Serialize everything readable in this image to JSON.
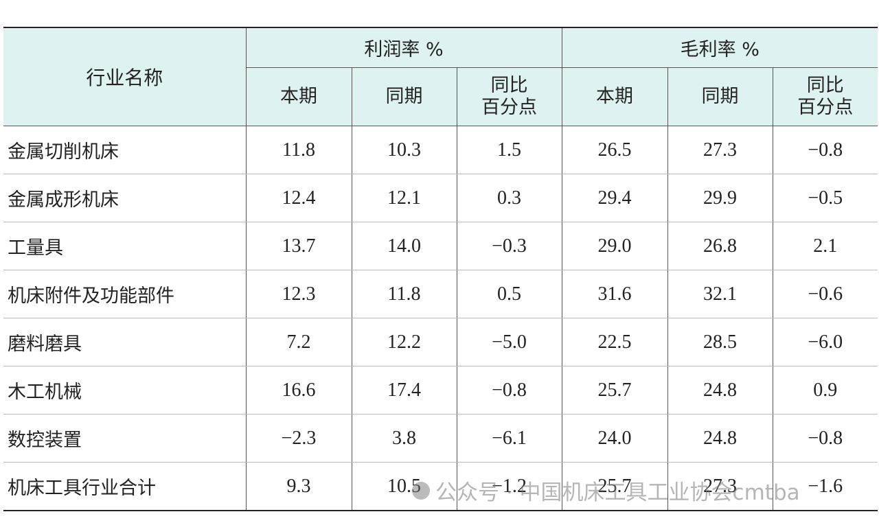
{
  "table": {
    "header": {
      "name": "行业名称",
      "groups": [
        "利润率 %",
        "毛利率 %"
      ],
      "subheaders": [
        "本期",
        "同期",
        "同比\n百分点",
        "本期",
        "同期",
        "同比\n百分点"
      ]
    },
    "rows": [
      [
        "金属切削机床",
        "11.8",
        "10.3",
        "1.5",
        "26.5",
        "27.3",
        "−0.8"
      ],
      [
        "金属成形机床",
        "12.4",
        "12.1",
        "0.3",
        "29.4",
        "29.9",
        "−0.5"
      ],
      [
        "工量具",
        "13.7",
        "14.0",
        "−0.3",
        "29.0",
        "26.8",
        "2.1"
      ],
      [
        "机床附件及功能部件",
        "12.3",
        "11.8",
        "0.5",
        "31.6",
        "32.1",
        "−0.6"
      ],
      [
        "磨料磨具",
        "7.2",
        "12.2",
        "−5.0",
        "22.5",
        "28.5",
        "−6.0"
      ],
      [
        "木工机械",
        "16.6",
        "17.4",
        "−0.8",
        "25.7",
        "24.8",
        "0.9"
      ],
      [
        "数控装置",
        "−2.3",
        "3.8",
        "−6.1",
        "24.0",
        "24.8",
        "−0.8"
      ],
      [
        "机床工具行业合计",
        "9.3",
        "10.5",
        "−1.2",
        "25.7",
        "27.3",
        "−1.6"
      ]
    ]
  },
  "watermark": "公众号 · 中国机床工具工业协会cmtba"
}
